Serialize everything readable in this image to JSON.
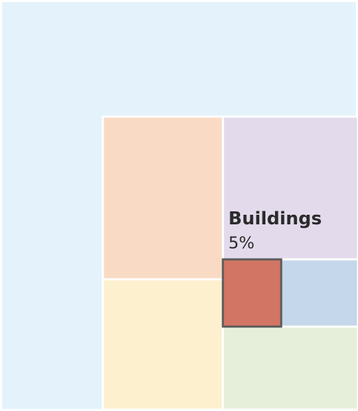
{
  "chart_data": {
    "type": "treemap",
    "title": "",
    "highlight": {
      "label": "Buildings",
      "value_text": "5%",
      "value": 5
    },
    "colors": {
      "background": "#e4f3fb",
      "orange": "#f9dbc5",
      "yellow": "#fcf0cf",
      "purple": "#e3dbec",
      "blue": "#c5d7ea",
      "green": "#e6efda",
      "highlight": "#d27565",
      "highlight_border": "#5b5b5b"
    }
  }
}
